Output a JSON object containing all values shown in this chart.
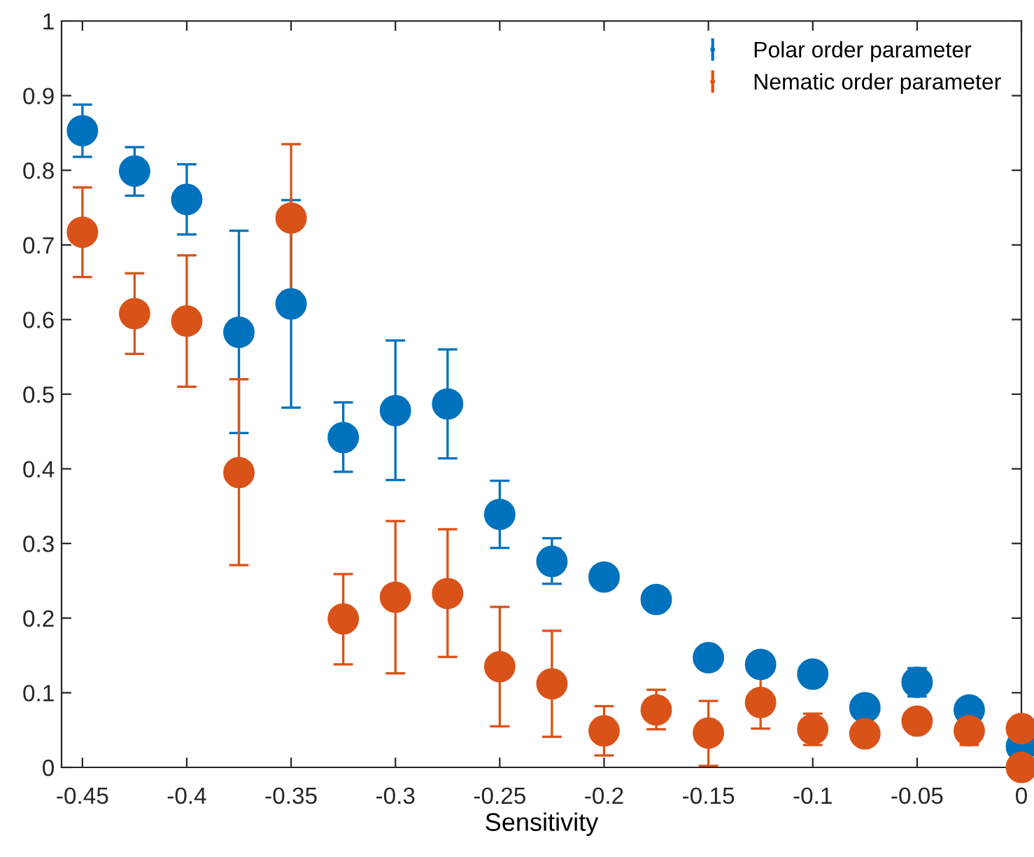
{
  "chart_data": {
    "type": "scatter",
    "xlabel": "Sensitivity",
    "xlim": [
      -0.46,
      0
    ],
    "ylim": [
      0,
      1
    ],
    "xticks": [
      -0.45,
      -0.4,
      -0.35,
      -0.3,
      -0.25,
      -0.2,
      -0.15,
      -0.1,
      -0.05,
      0
    ],
    "yticks": [
      0,
      0.1,
      0.2,
      0.3,
      0.4,
      0.5,
      0.6,
      0.7,
      0.8,
      0.9,
      1
    ],
    "legend": "top right",
    "marker": "circle",
    "grid": false,
    "series": [
      {
        "name": "Polar order parameter",
        "color": "#0072bd",
        "x": [
          -0.45,
          -0.425,
          -0.4,
          -0.375,
          -0.35,
          -0.325,
          -0.3,
          -0.275,
          -0.25,
          -0.225,
          -0.2,
          -0.175,
          -0.15,
          -0.125,
          -0.1,
          -0.075,
          -0.05,
          -0.025,
          0
        ],
        "values": [
          0.853,
          0.799,
          0.761,
          0.583,
          0.621,
          0.442,
          0.478,
          0.487,
          0.339,
          0.276,
          0.255,
          0.225,
          0.147,
          0.138,
          0.125,
          0.08,
          0.114,
          0.077,
          0.028
        ],
        "errors": [
          [
            0.818,
            0.888
          ],
          [
            0.766,
            0.831
          ],
          [
            0.714,
            0.808
          ],
          [
            0.448,
            0.719
          ],
          [
            0.482,
            0.76
          ],
          [
            0.396,
            0.489
          ],
          [
            0.385,
            0.572
          ],
          [
            0.414,
            0.56
          ],
          [
            0.294,
            0.384
          ],
          [
            0.246,
            0.307
          ],
          null,
          null,
          null,
          null,
          null,
          null,
          [
            0.095,
            0.133
          ],
          null,
          null
        ]
      },
      {
        "name": "Nematic order parameter",
        "color": "#d95319",
        "x": [
          -0.45,
          -0.425,
          -0.4,
          -0.375,
          -0.35,
          -0.325,
          -0.3,
          -0.275,
          -0.25,
          -0.225,
          -0.2,
          -0.175,
          -0.15,
          -0.125,
          -0.1,
          -0.075,
          -0.05,
          -0.025,
          0,
          0
        ],
        "values": [
          0.717,
          0.608,
          0.598,
          0.395,
          0.736,
          0.199,
          0.228,
          0.233,
          0.135,
          0.112,
          0.049,
          0.077,
          0.046,
          0.087,
          0.051,
          0.045,
          0.062,
          0.049,
          0.052,
          0.0
        ],
        "errors": [
          [
            0.657,
            0.777
          ],
          [
            0.554,
            0.662
          ],
          [
            0.51,
            0.686
          ],
          [
            0.271,
            0.52
          ],
          [
            0.637,
            0.835
          ],
          [
            0.138,
            0.259
          ],
          [
            0.126,
            0.33
          ],
          [
            0.148,
            0.319
          ],
          [
            0.055,
            0.215
          ],
          [
            0.041,
            0.183
          ],
          [
            0.016,
            0.082
          ],
          [
            0.051,
            0.104
          ],
          [
            0.002,
            0.089
          ],
          [
            0.052,
            0.123
          ],
          [
            0.03,
            0.072
          ],
          null,
          null,
          [
            0.03,
            0.065
          ],
          null,
          null
        ]
      }
    ]
  }
}
